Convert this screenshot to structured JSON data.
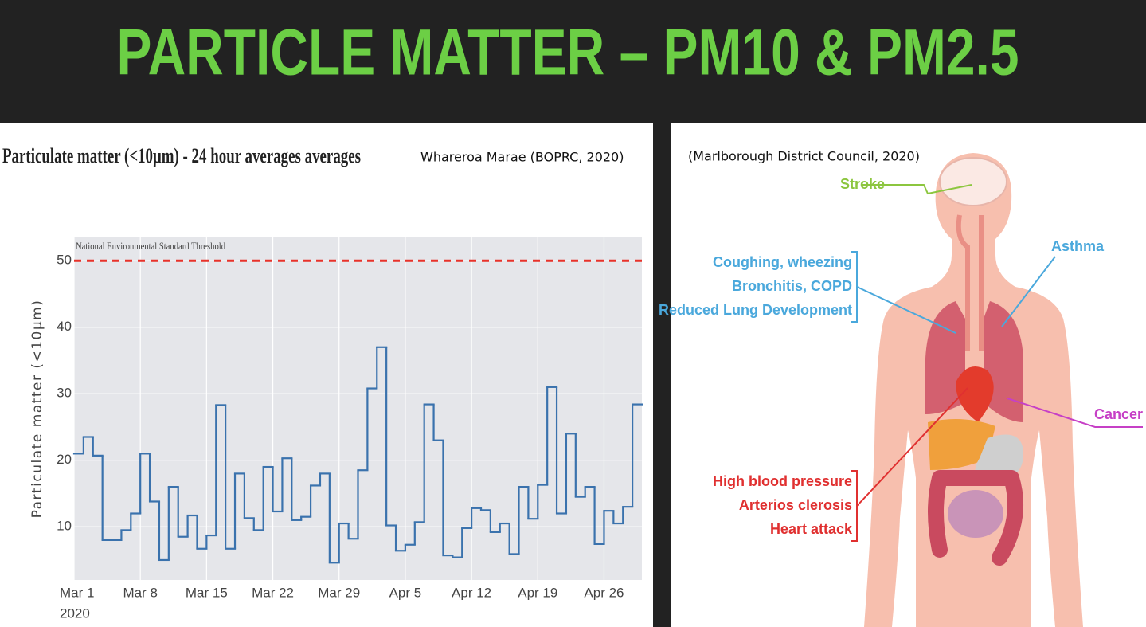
{
  "slide_title": "PARTICLE MATTER – PM10 & PM2.5",
  "chart_data": {
    "type": "step",
    "title": "Particulate matter (<10μm) - 24 hour averages averages",
    "source": "Whareroa Marae (BOPRC, 2020)",
    "y_label": "Particulate matter (<10μm)",
    "x": [
      "2020-03-01",
      "2020-03-02",
      "2020-03-03",
      "2020-03-04",
      "2020-03-05",
      "2020-03-06",
      "2020-03-07",
      "2020-03-08",
      "2020-03-09",
      "2020-03-10",
      "2020-03-11",
      "2020-03-12",
      "2020-03-13",
      "2020-03-14",
      "2020-03-15",
      "2020-03-16",
      "2020-03-17",
      "2020-03-18",
      "2020-03-19",
      "2020-03-20",
      "2020-03-21",
      "2020-03-22",
      "2020-03-23",
      "2020-03-24",
      "2020-03-25",
      "2020-03-26",
      "2020-03-27",
      "2020-03-28",
      "2020-03-29",
      "2020-03-30",
      "2020-03-31",
      "2020-04-01",
      "2020-04-02",
      "2020-04-03",
      "2020-04-04",
      "2020-04-05",
      "2020-04-06",
      "2020-04-07",
      "2020-04-08",
      "2020-04-09",
      "2020-04-10",
      "2020-04-11",
      "2020-04-12",
      "2020-04-13",
      "2020-04-14",
      "2020-04-15",
      "2020-04-16",
      "2020-04-17",
      "2020-04-18",
      "2020-04-19",
      "2020-04-20",
      "2020-04-21",
      "2020-04-22",
      "2020-04-23",
      "2020-04-24",
      "2020-04-25",
      "2020-04-26",
      "2020-04-27",
      "2020-04-28",
      "2020-04-29"
    ],
    "values": [
      21,
      23.5,
      20.7,
      8,
      8,
      9.5,
      12,
      21,
      13.8,
      5,
      16,
      8.5,
      11.7,
      6.7,
      8.7,
      28.3,
      6.7,
      18,
      11.3,
      9.5,
      19,
      12.3,
      20.3,
      11,
      11.5,
      16.2,
      18,
      4.6,
      10.5,
      8.2,
      18.5,
      30.8,
      37,
      10.2,
      6.4,
      7.3,
      10.7,
      28.4,
      23,
      5.7,
      5.4,
      9.8,
      12.8,
      12.5,
      9.2,
      10.5,
      5.9,
      16,
      11.2,
      16.3,
      31,
      12,
      24,
      14.5,
      16,
      7.4,
      12.4,
      10.5,
      13,
      28.4
    ],
    "color": "#3a72ad",
    "xlim": [
      "2020-03-01",
      "2020-04-30"
    ],
    "xticks": [
      {
        "value": "2020-03-01",
        "label": "Mar 1"
      },
      {
        "value": "2020-03-08",
        "label": "Mar 8"
      },
      {
        "value": "2020-03-15",
        "label": "Mar 15"
      },
      {
        "value": "2020-03-22",
        "label": "Mar 22"
      },
      {
        "value": "2020-03-29",
        "label": "Mar 29"
      },
      {
        "value": "2020-04-05",
        "label": "Apr 5"
      },
      {
        "value": "2020-04-12",
        "label": "Apr 12"
      },
      {
        "value": "2020-04-19",
        "label": "Apr 19"
      },
      {
        "value": "2020-04-26",
        "label": "Apr 26"
      }
    ],
    "xtick_year": "2020",
    "ylim": [
      2,
      53.5
    ],
    "yticks": [
      10,
      20,
      30,
      40,
      50
    ],
    "grid": true,
    "threshold": {
      "value": 50,
      "label": "National Environmental Standard Threshold",
      "color": "#e8322a"
    }
  },
  "diagram": {
    "source": "(Marlborough District Council, 2020)",
    "stroke": "Stroke",
    "asthma": "Asthma",
    "respiratory": [
      "Coughing, wheezing",
      "Bronchitis, COPD",
      "Reduced Lung Development"
    ],
    "cancer": "Cancer",
    "cardiovascular": [
      "High blood pressure",
      "Arterios clerosis",
      "Heart attack"
    ]
  }
}
